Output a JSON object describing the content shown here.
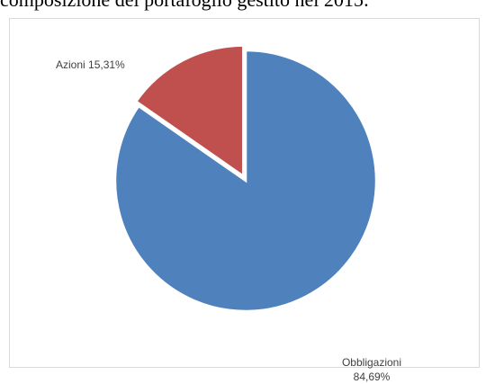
{
  "page": {
    "top_text": "composizione del portafoglio gestito nel 2015:"
  },
  "chart_data": {
    "type": "pie",
    "categories": [
      "Obbligazioni",
      "Azioni"
    ],
    "values": [
      84.69,
      15.31
    ],
    "colors": [
      "#4f81bd",
      "#c0504d"
    ],
    "exploded": [
      false,
      true
    ],
    "start_angle_deg": 0,
    "legend": "none",
    "labels": [
      {
        "name": "Obbligazioni",
        "value": "84,69%"
      },
      {
        "name": "Azioni",
        "value": "15,31%"
      }
    ]
  }
}
